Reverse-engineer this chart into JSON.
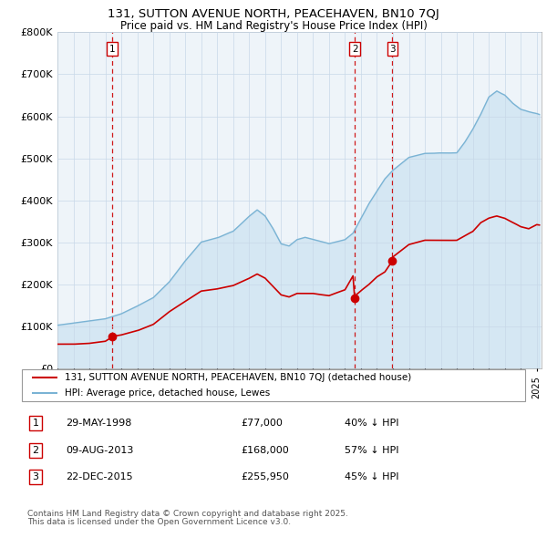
{
  "title_line1": "131, SUTTON AVENUE NORTH, PEACEHAVEN, BN10 7QJ",
  "title_line2": "Price paid vs. HM Land Registry's House Price Index (HPI)",
  "hpi_color": "#7ab3d4",
  "hpi_fill_color": "#d6eaf8",
  "price_color": "#cc0000",
  "dashed_color": "#cc0000",
  "background_color": "#ffffff",
  "plot_bg_color": "#f0f4f8",
  "grid_color": "#c8d8e8",
  "ylim": [
    0,
    800000
  ],
  "yticks": [
    0,
    100000,
    200000,
    300000,
    400000,
    500000,
    600000,
    700000,
    800000
  ],
  "ytick_labels": [
    "£0",
    "£100K",
    "£200K",
    "£300K",
    "£400K",
    "£500K",
    "£600K",
    "£700K",
    "£800K"
  ],
  "legend_line1": "131, SUTTON AVENUE NORTH, PEACEHAVEN, BN10 7QJ (detached house)",
  "legend_line2": "HPI: Average price, detached house, Lewes",
  "transactions": [
    {
      "num": 1,
      "date": "29-MAY-1998",
      "price": 77000,
      "pct": "40% ↓ HPI",
      "year": 1998.41
    },
    {
      "num": 2,
      "date": "09-AUG-2013",
      "price": 168000,
      "pct": "57% ↓ HPI",
      "year": 2013.61
    },
    {
      "num": 3,
      "date": "22-DEC-2015",
      "price": 255950,
      "pct": "45% ↓ HPI",
      "year": 2015.97
    }
  ],
  "footer_line1": "Contains HM Land Registry data © Crown copyright and database right 2025.",
  "footer_line2": "This data is licensed under the Open Government Licence v3.0."
}
